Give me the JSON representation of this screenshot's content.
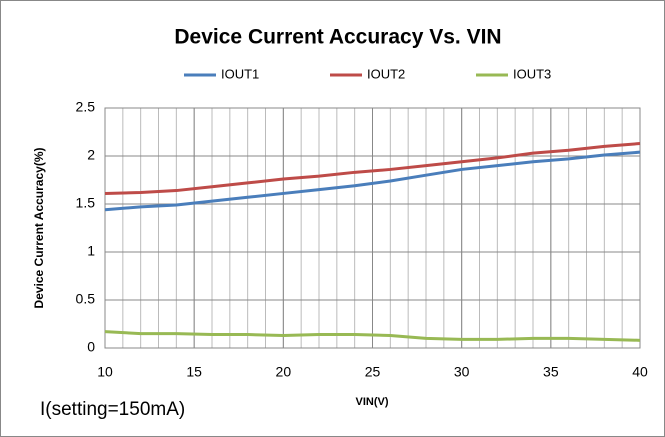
{
  "chart_data": {
    "type": "line",
    "title": "Device Current Accuracy Vs. VIN",
    "xlabel": "VIN(V)",
    "ylabel": "Device Current Accuracy(%)",
    "annotation": "I(setting=150mA)",
    "x": [
      10,
      12,
      14,
      16,
      18,
      20,
      22,
      24,
      26,
      28,
      30,
      32,
      34,
      36,
      38,
      40
    ],
    "series": [
      {
        "name": "IOUT1",
        "color": "#4a7ebb",
        "values": [
          1.44,
          1.47,
          1.49,
          1.53,
          1.57,
          1.61,
          1.65,
          1.69,
          1.74,
          1.8,
          1.86,
          1.9,
          1.94,
          1.97,
          2.01,
          2.04
        ]
      },
      {
        "name": "IOUT2",
        "color": "#be4b48",
        "values": [
          1.61,
          1.62,
          1.64,
          1.68,
          1.72,
          1.76,
          1.79,
          1.83,
          1.86,
          1.9,
          1.94,
          1.98,
          2.03,
          2.06,
          2.1,
          2.13
        ]
      },
      {
        "name": "IOUT3",
        "color": "#98b954",
        "values": [
          0.17,
          0.15,
          0.15,
          0.14,
          0.14,
          0.13,
          0.14,
          0.14,
          0.13,
          0.1,
          0.09,
          0.09,
          0.1,
          0.1,
          0.09,
          0.08
        ]
      }
    ],
    "xlim": [
      10,
      40
    ],
    "xticks": [
      10,
      15,
      20,
      25,
      30,
      35,
      40
    ],
    "ylim": [
      0,
      2.5
    ],
    "yticks": [
      0,
      0.5,
      1,
      1.5,
      2,
      2.5
    ],
    "grid": true,
    "minor_grid_step": 1,
    "legend": "top"
  }
}
